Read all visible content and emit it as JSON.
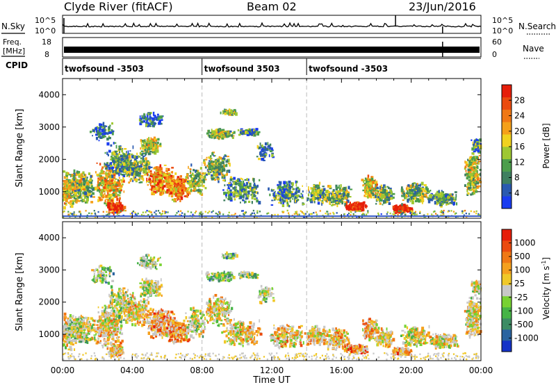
{
  "header": {
    "station": "Clyde River (fitACF)",
    "beam": "Beam 02",
    "date": "23/Jun/2016"
  },
  "strip_labels": {
    "nsky": "N.Sky",
    "nsearch": "N.Search",
    "freq_line1": "Freq.",
    "freq_line2": "[MHz]",
    "nave": "Nave",
    "cpid": "CPID",
    "nsky_ticks": [
      "10^5",
      "10^0"
    ],
    "nsearch_ticks": [
      "10^5",
      "10^0"
    ],
    "freq_ticks": [
      "18",
      "8"
    ],
    "nave_ticks": [
      "60",
      "0"
    ]
  },
  "cpid_segments": [
    {
      "label": "twofsound -3503",
      "start_hour": 0,
      "end_hour": 8
    },
    {
      "label": "twofsound 3503",
      "start_hour": 8,
      "end_hour": 14
    },
    {
      "label": "twofsound -3503",
      "start_hour": 14,
      "end_hour": 24
    }
  ],
  "chart_data": [
    {
      "type": "heatmap",
      "name": "power",
      "ylabel": "Slant Range [km]",
      "xlabel": "",
      "x_range_hours": [
        0,
        24
      ],
      "ylim": [
        180,
        4500
      ],
      "y_ticks": [
        1000,
        2000,
        3000,
        4000
      ],
      "colorbar": {
        "label": "Power [dB]",
        "ticks": [
          "4",
          "8",
          "12",
          "16",
          "20",
          "24",
          "28"
        ],
        "colors": [
          "#1a3cf0",
          "#2a5ab0",
          "#3f8060",
          "#4c9e4c",
          "#9ec832",
          "#f0d21e",
          "#f5a019",
          "#f07814",
          "#eb4b0f",
          "#e61e0a"
        ]
      }
    },
    {
      "type": "heatmap",
      "name": "velocity",
      "ylabel": "Slant Range [km]",
      "xlabel": "Time UT",
      "x_range_hours": [
        0,
        24
      ],
      "x_ticks": [
        "00:00",
        "04:00",
        "08:00",
        "12:00",
        "16:00",
        "20:00",
        "00:00"
      ],
      "ylim": [
        180,
        4500
      ],
      "y_ticks": [
        1000,
        2000,
        3000,
        4000
      ],
      "colorbar": {
        "label": "Velocity [m s",
        "label_sup": "-1",
        "label_end": "]",
        "ticks": [
          "1000",
          "500",
          "100",
          "25",
          "-25",
          "-100",
          "-500",
          "-1000"
        ],
        "colors": [
          "#1432c8",
          "#2a64a0",
          "#3c8c64",
          "#46b446",
          "#78d232",
          "#c8c8c8",
          "#f0c828",
          "#f5a01e",
          "#f07814",
          "#eb4b0f",
          "#e61e0a"
        ]
      }
    }
  ]
}
